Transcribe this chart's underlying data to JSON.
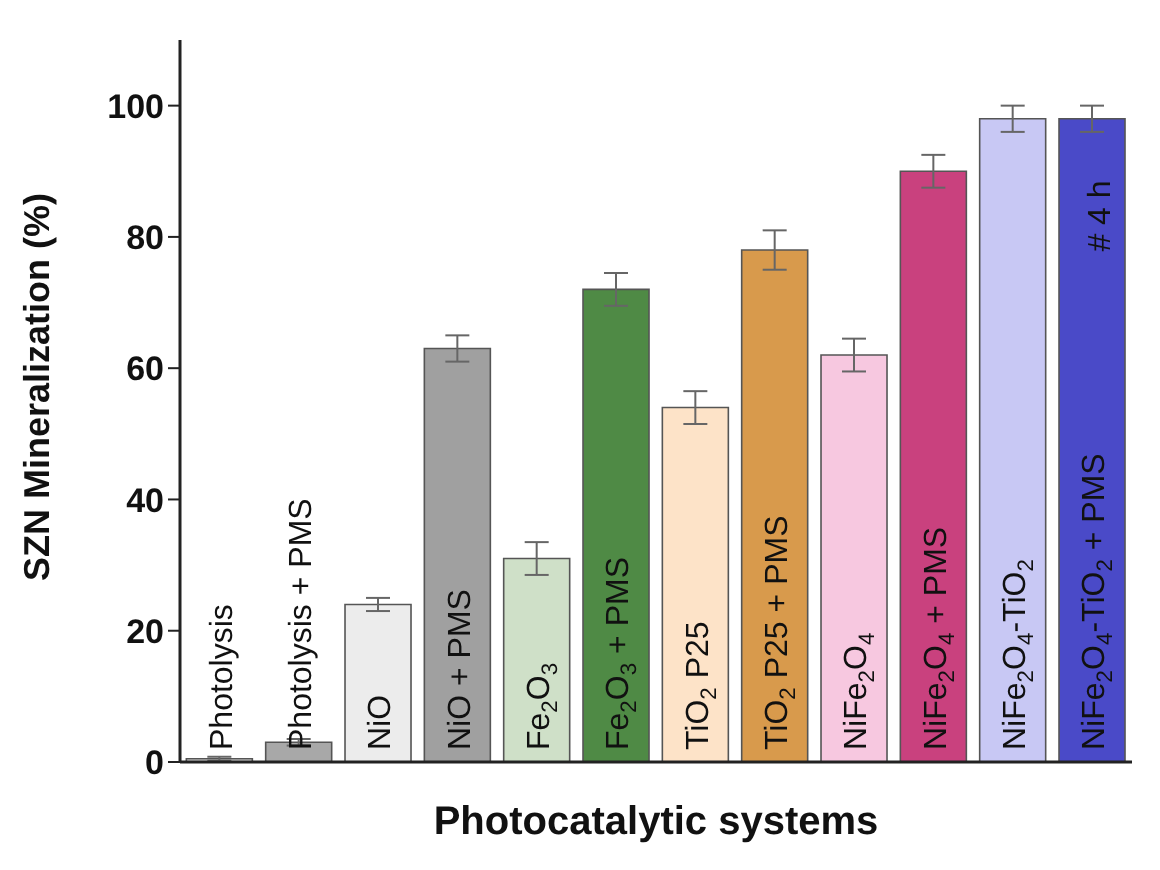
{
  "chart_data": {
    "type": "bar",
    "xlabel": "Photocatalytic systems",
    "ylabel": "SZN Mineralization (%)",
    "categories": [
      "Photolysis",
      "Photolysis + PMS",
      "NiO",
      "NiO + PMS",
      "Fe$_{2}$O$_{3}$",
      "Fe$_{2}$O$_{3}$ + PMS",
      "TiO$_{2}$ P25",
      "TiO$_{2}$ P25 + PMS",
      "NiFe$_{2}$O$_{4}$",
      "NiFe$_{2}$O$_{4}$ + PMS",
      "NiFe$_{2}$O$_{4}$-TiO$_{2}$",
      "NiFe$_{2}$O$_{4}$-TiO$_{2}$ + PMS"
    ],
    "values": [
      0.5,
      3,
      24,
      63,
      31,
      72,
      54,
      78,
      62,
      90,
      98,
      98
    ],
    "errors": [
      0.3,
      0.5,
      1,
      2,
      2.5,
      2.5,
      2.5,
      3,
      2.5,
      2.5,
      2,
      2
    ],
    "colors": [
      "#d8d8d8",
      "#a8a8a8",
      "#ececec",
      "#a0a0a0",
      "#cfe0c8",
      "#4f8a45",
      "#fde3c8",
      "#d89a4c",
      "#f7c8e0",
      "#c9417e",
      "#c8c8f4",
      "#4a4ac8"
    ],
    "ylim": [
      0,
      110
    ],
    "yticks": [
      0,
      20,
      40,
      60,
      80,
      100
    ],
    "grid": false,
    "legend": false,
    "annotations": [
      "# 4 h"
    ]
  }
}
